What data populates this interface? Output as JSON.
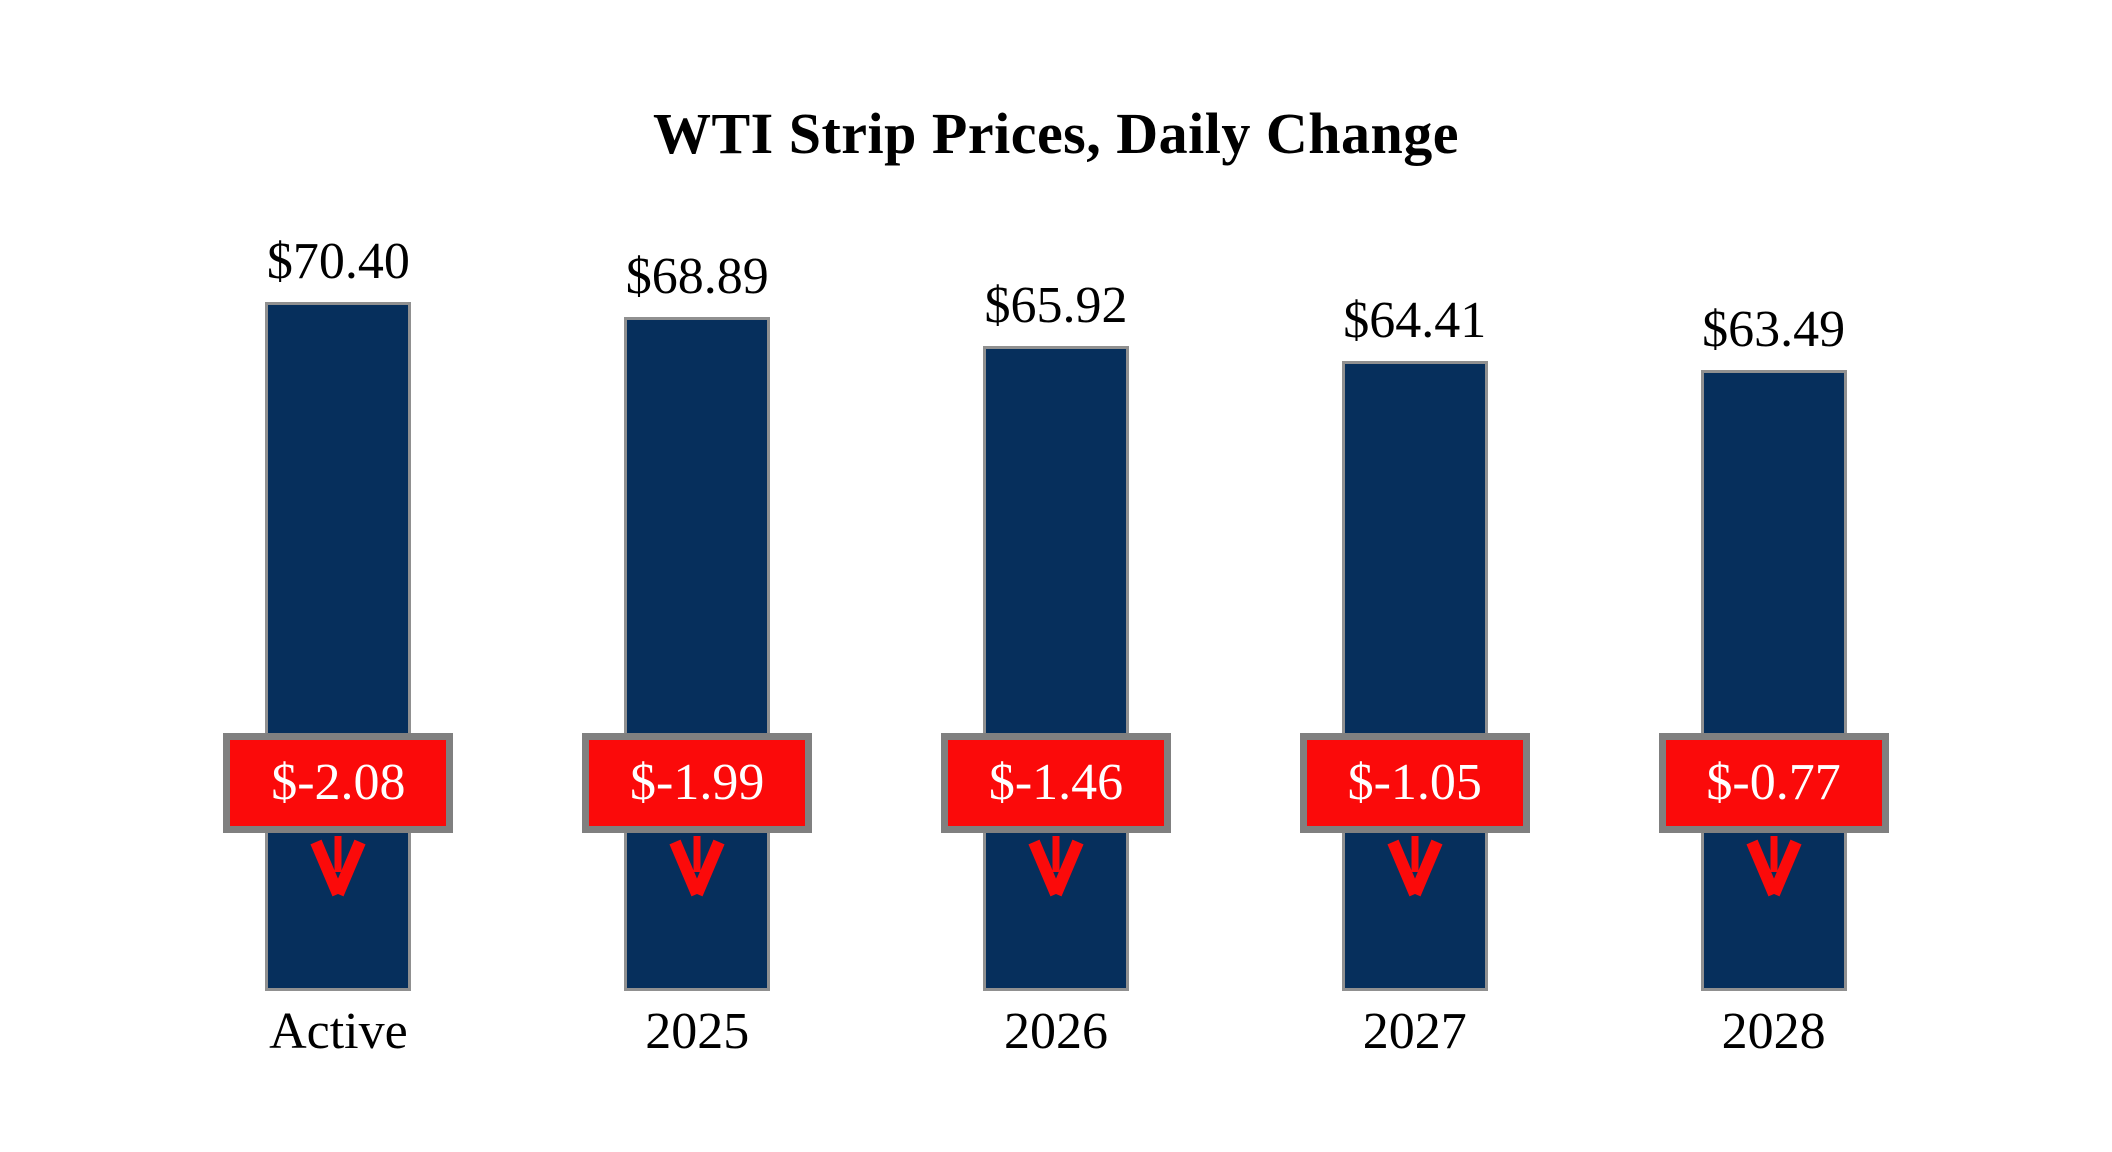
{
  "chart_data": {
    "type": "bar",
    "title": "WTI Strip Prices, Daily Change",
    "categories": [
      "Active",
      "2025",
      "2026",
      "2027",
      "2028"
    ],
    "values": [
      70.4,
      68.89,
      65.92,
      64.41,
      63.49
    ],
    "value_labels": [
      "$70.40",
      "$68.89",
      "$65.92",
      "$64.41",
      "$63.49"
    ],
    "daily_changes": [
      -2.08,
      -1.99,
      -1.46,
      -1.05,
      -0.77
    ],
    "change_labels": [
      "$-2.08",
      "$-1.99",
      "$-1.46",
      "$-1.05",
      "$-0.77"
    ],
    "series": [
      {
        "name": "Strip price",
        "values": [
          70.4,
          68.89,
          65.92,
          64.41,
          63.49
        ]
      },
      {
        "name": "Daily change",
        "values": [
          -2.08,
          -1.99,
          -1.46,
          -1.05,
          -0.77
        ]
      }
    ],
    "ylim": [
      0,
      70.4
    ],
    "axes_visible": false,
    "grid": false,
    "legend": "none",
    "colors": {
      "bar": "#062F5C",
      "bar_border": "#909090",
      "change_box": "#FB0A0A",
      "change_box_border": "#808080",
      "change_text": "#FFFFFF",
      "arrow": "#FB0A0A",
      "text": "#000000",
      "background": "#FFFFFF"
    }
  }
}
